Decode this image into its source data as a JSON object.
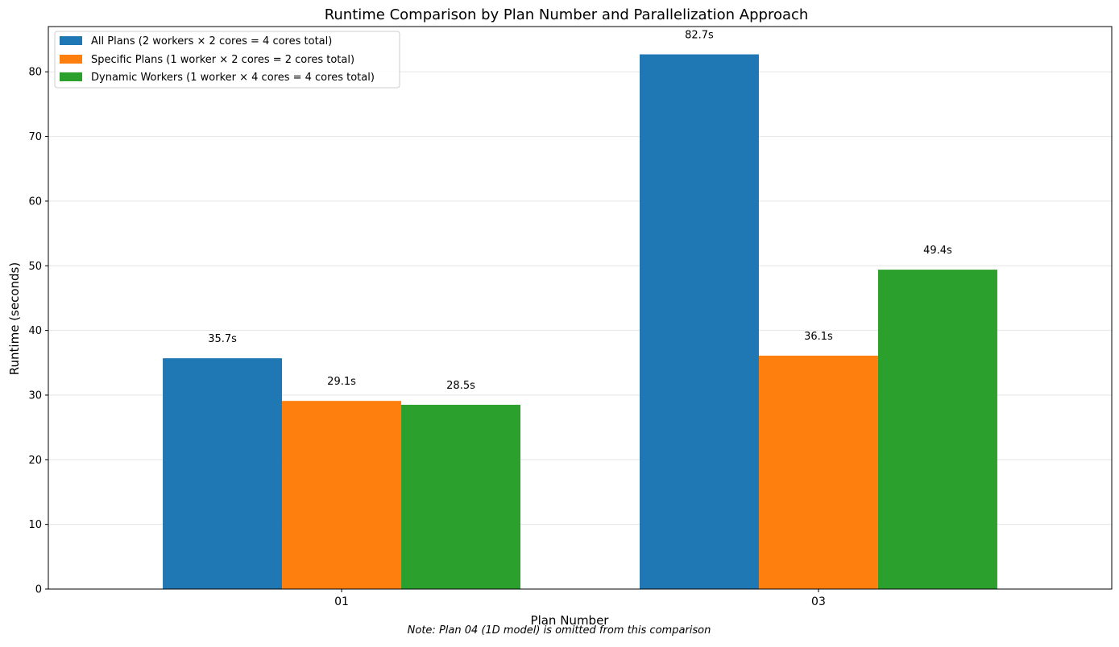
{
  "chart_data": {
    "type": "bar",
    "title": "Runtime Comparison by Plan Number and Parallelization Approach",
    "xlabel": "Plan Number",
    "ylabel": "Runtime (seconds)",
    "categories": [
      "01",
      "03"
    ],
    "ylim": [
      0,
      87
    ],
    "yticks": [
      0,
      10,
      20,
      30,
      40,
      50,
      60,
      70,
      80
    ],
    "grid": "horizontal",
    "legend_position": "upper-left",
    "series": [
      {
        "name": "All Plans (2 workers × 2 cores = 4 cores total)",
        "color": "#1f77b4",
        "values": [
          35.7,
          82.7
        ],
        "labels": [
          "35.7s",
          "82.7s"
        ]
      },
      {
        "name": "Specific Plans (1 worker × 2 cores = 2 cores total)",
        "color": "#ff7f0e",
        "values": [
          29.1,
          36.1
        ],
        "labels": [
          "29.1s",
          "36.1s"
        ]
      },
      {
        "name": "Dynamic Workers (1 worker × 4 cores = 4 cores total)",
        "color": "#2ca02c",
        "values": [
          28.5,
          49.4
        ],
        "labels": [
          "28.5s",
          "49.4s"
        ]
      }
    ],
    "note": "Note: Plan 04 (1D model) is omitted from this comparison"
  }
}
